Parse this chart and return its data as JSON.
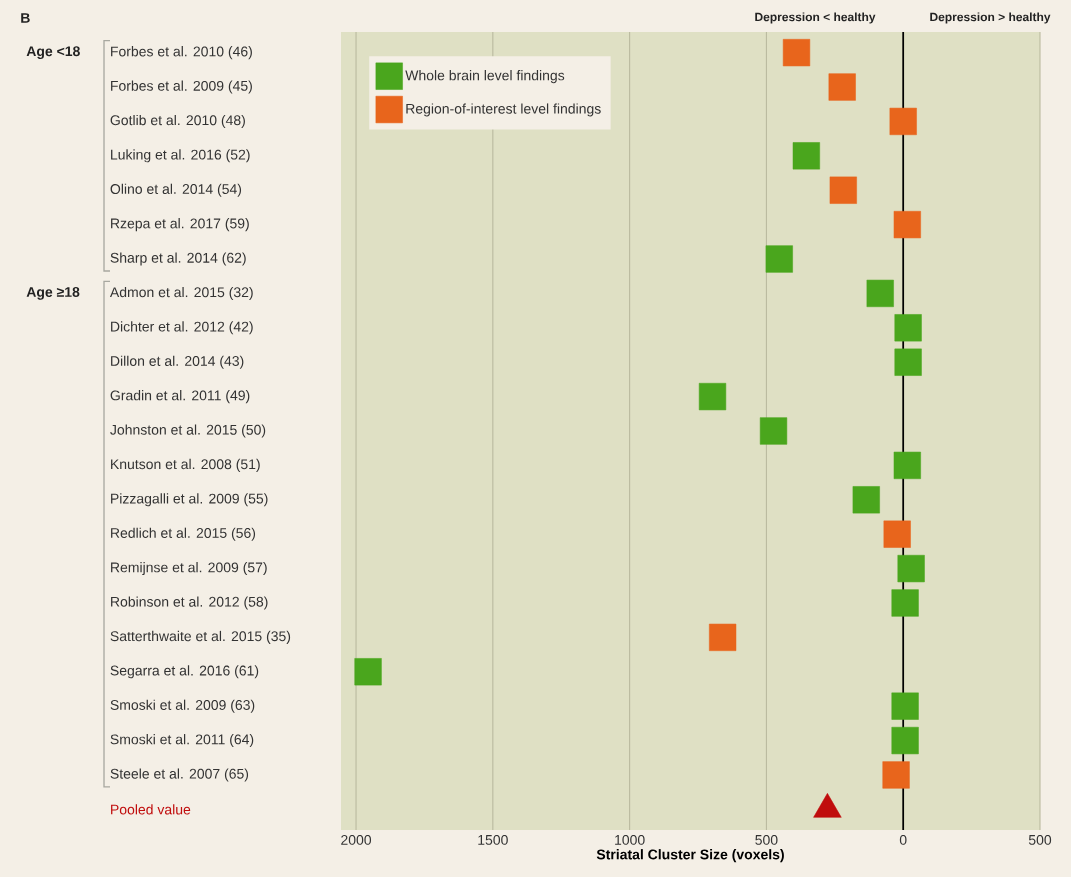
{
  "chart_data": {
    "type": "scatter",
    "categories": [
      "Forbes et al. 2010 (46)",
      "Forbes et al. 2009 (45)",
      "Gotlib et al. 2010 (48)",
      "Luking et al. 2016 (52)",
      "Olino et al. 2014 (54)",
      "Rzepa et al. 2017 (59)",
      "Sharp et al. 2014 (62)",
      "Admon et al. 2015 (32)",
      "Dichter et al. 2012 (42)",
      "Dillon et al. 2014 (43)",
      "Gradin et al. 2011 (49)",
      "Johnston et al. 2015 (50)",
      "Knutson et al. 2008 (51)",
      "Pizzagalli et al. 2009 (55)",
      "Redlich et al. 2015 (56)",
      "Remijnse et al. 2009 (57)",
      "Robinson et al. 2012 (58)",
      "Satterthwaite et al. 2015 (35)",
      "Segarra et al. 2016 (61)",
      "Smoski et al. 2009 (63)",
      "Smoski et al. 2011 (64)",
      "Steele et al. 2007 (65)",
      "Pooled value"
    ],
    "series": [
      {
        "name": "Whole brain level findings",
        "color": "#4aa61d",
        "marker": "square",
        "values": [
          null,
          null,
          null,
          354,
          null,
          null,
          453,
          84,
          -18,
          -18,
          697,
          474,
          -15,
          135,
          null,
          -29,
          -7,
          null,
          1956,
          -7,
          -7,
          null,
          null
        ]
      },
      {
        "name": "Region-of-interest level findings",
        "color": "#e8651c",
        "marker": "square",
        "values": [
          390,
          223,
          0,
          null,
          219,
          -15,
          null,
          null,
          null,
          null,
          null,
          null,
          null,
          null,
          22,
          null,
          null,
          660,
          null,
          null,
          null,
          26,
          null
        ]
      },
      {
        "color": "#c00d0d",
        "marker": "triangle",
        "values": [
          null,
          null,
          null,
          null,
          null,
          null,
          null,
          null,
          null,
          null,
          null,
          null,
          null,
          null,
          null,
          null,
          null,
          null,
          null,
          null,
          null,
          null,
          277
        ]
      }
    ],
    "orientation": "horizontal",
    "xlabel": "Striatal Cluster Size (voxels)",
    "xlim": [
      2055,
      -500
    ],
    "xticks": [
      2000,
      1500,
      1000,
      500,
      0,
      {
        "value": -500,
        "label": "500"
      }
    ],
    "grid": "x",
    "legend": "top left",
    "ref_lines": [
      {
        "axis": "x",
        "value": 0,
        "color": "#000000"
      }
    ],
    "annotations": [
      "B",
      "Depression < healthy",
      "Depression > healthy",
      "Age <18",
      "Age ≥18"
    ]
  }
}
